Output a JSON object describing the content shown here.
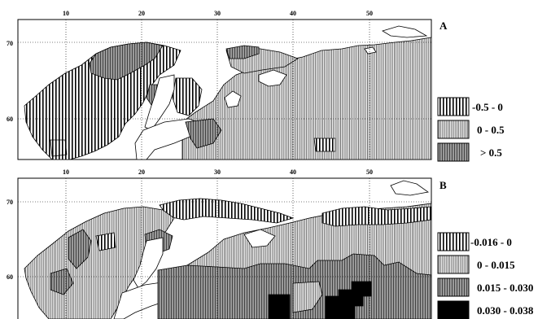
{
  "panels": [
    {
      "letter": "A",
      "lon_ticks": [
        "10",
        "20",
        "30",
        "40",
        "50"
      ],
      "lat_ticks": [
        "70",
        "60"
      ],
      "legend": [
        {
          "label": "-0.5 - 0",
          "pattern": "vwide"
        },
        {
          "label": "0 - 0.5",
          "pattern": "vfine"
        },
        {
          "label": "> 0.5",
          "pattern": "vdark"
        }
      ]
    },
    {
      "letter": "B",
      "lon_ticks": [
        "10",
        "20",
        "30",
        "40",
        "50"
      ],
      "lat_ticks": [
        "70",
        "60"
      ],
      "legend": [
        {
          "label": "-0.016 - 0",
          "pattern": "vwide"
        },
        {
          "label": "0 - 0.015",
          "pattern": "vfine"
        },
        {
          "label": "0.015 - 0.030",
          "pattern": "vdark"
        },
        {
          "label": "0.030 - 0.038",
          "pattern": "solid"
        }
      ]
    }
  ]
}
